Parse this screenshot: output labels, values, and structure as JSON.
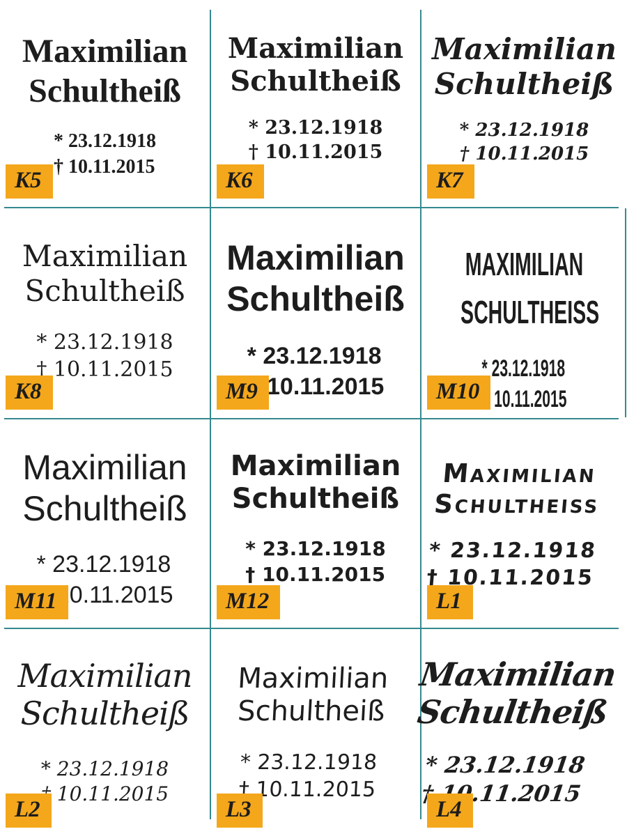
{
  "colors": {
    "background": "#ffffff",
    "text": "#1d1d1d",
    "divider": "#35898F",
    "badge_bg": "#F4A71B",
    "badge_text": "#1c1c1c"
  },
  "samples": [
    {
      "id": "K5",
      "label": "K5",
      "name_line1": "Maximilian",
      "name_line2": "Schultheiß",
      "birth": "* 23.12.1918",
      "death": "† 10.11.2015",
      "style": "bold serif"
    },
    {
      "id": "K6",
      "label": "K6",
      "name_line1": "Maximilian",
      "name_line2": "Schultheiß",
      "birth": "* 23.12.1918",
      "death": "† 10.11.2015",
      "style": "bold slab serif"
    },
    {
      "id": "K7",
      "label": "K7",
      "name_line1": "Maximilian",
      "name_line2": "Schultheiß",
      "birth": "* 23.12.1918",
      "death": "† 10.11.2015",
      "style": "bold italic serif"
    },
    {
      "id": "K8",
      "label": "K8",
      "name_line1": "Maximilian",
      "name_line2": "Schultheiß",
      "birth": "* 23.12.1918",
      "death": "† 10.11.2015",
      "style": "regular serif"
    },
    {
      "id": "M9",
      "label": "M9",
      "name_line1": "Maximilian",
      "name_line2": "Schultheiß",
      "birth": "* 23.12.1918",
      "death": "† 10.11.2015",
      "style": "bold sans-serif"
    },
    {
      "id": "M10",
      "label": "M10",
      "name_line1": "MAXIMILIAN",
      "name_line2": "SCHULTHEISS",
      "birth": "* 23.12.1918",
      "death": "† 10.11.2015",
      "style": "condensed bold caps sans-serif"
    },
    {
      "id": "M11",
      "label": "M11",
      "name_line1": "Maximilian",
      "name_line2": "Schultheiß",
      "birth": "* 23.12.1918",
      "death": "† 10.11.2015",
      "style": "regular sans-serif"
    },
    {
      "id": "M12",
      "label": "M12",
      "name_line1": "Maximilian",
      "name_line2": "Schultheiß",
      "birth": "* 23.12.1918",
      "death": "† 10.11.2015",
      "style": "rounded bold sans-serif"
    },
    {
      "id": "L1",
      "label": "L1",
      "name_line1": "Maximilian",
      "name_line2": "Schultheiss",
      "birth": "* 23.12.1918",
      "death": "† 10.11.2015",
      "style": "handwritten marker small caps"
    },
    {
      "id": "L2",
      "label": "L2",
      "name_line1": "Maximilian",
      "name_line2": "Schultheiß",
      "birth": "* 23.12.1918",
      "death": "† 10.11.2015",
      "style": "calligraphic script"
    },
    {
      "id": "L3",
      "label": "L3",
      "name_line1": "Maximilian",
      "name_line2": "Schultheiß",
      "birth": "* 23.12.1918",
      "death": "† 10.11.2015",
      "style": "casual handwriting"
    },
    {
      "id": "L4",
      "label": "L4",
      "name_line1": "Maximilian",
      "name_line2": "Schultheiß",
      "birth": "* 23.12.1918",
      "death": "† 10.11.2015",
      "style": "bold brush script italic"
    }
  ]
}
